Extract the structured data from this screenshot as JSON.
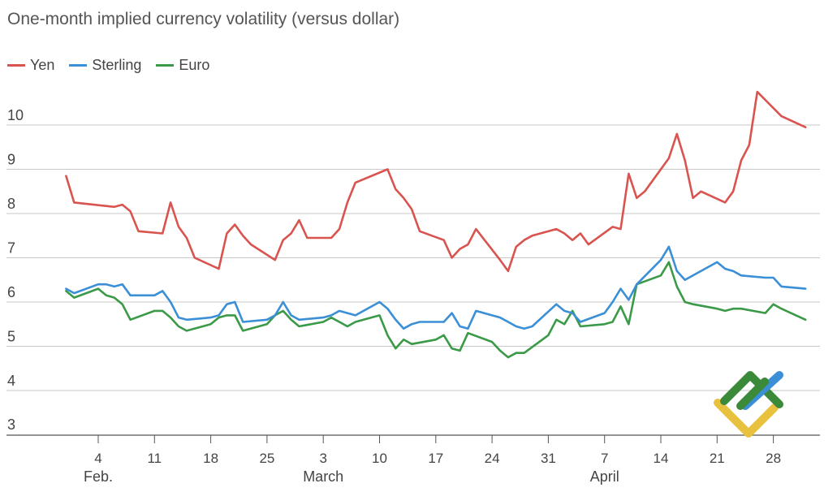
{
  "chart_data": {
    "type": "line",
    "title": "One-month implied currency volatility (versus dollar)",
    "ylim": [
      3,
      11
    ],
    "yticks": [
      3,
      4,
      5,
      6,
      7,
      8,
      9,
      10
    ],
    "grid": "horizontal",
    "legend_placement": "top-left",
    "x_ticks": [
      "4",
      "11",
      "18",
      "25",
      "3",
      "10",
      "17",
      "24",
      "31",
      "7",
      "14",
      "21",
      "28"
    ],
    "x_tick_dates": [
      "2020-02-04",
      "2020-02-11",
      "2020-02-18",
      "2020-02-25",
      "2020-03-03",
      "2020-03-10",
      "2020-03-17",
      "2020-03-24",
      "2020-03-31",
      "2020-04-07",
      "2020-04-14",
      "2020-04-21",
      "2020-04-28"
    ],
    "months": [
      {
        "label": "Feb.",
        "date": "2020-02-04"
      },
      {
        "label": "March",
        "date": "2020-03-03"
      },
      {
        "label": "April",
        "date": "2020-04-07"
      }
    ],
    "series": [
      {
        "name": "Yen",
        "color": "#d9534f",
        "points": [
          [
            "2020-01-31",
            8.85
          ],
          [
            "2020-02-01",
            8.25
          ],
          [
            "2020-02-06",
            8.15
          ],
          [
            "2020-02-07",
            8.2
          ],
          [
            "2020-02-08",
            8.05
          ],
          [
            "2020-02-09",
            7.6
          ],
          [
            "2020-02-12",
            7.55
          ],
          [
            "2020-02-13",
            8.25
          ],
          [
            "2020-02-14",
            7.7
          ],
          [
            "2020-02-15",
            7.45
          ],
          [
            "2020-02-16",
            7.0
          ],
          [
            "2020-02-19",
            6.75
          ],
          [
            "2020-02-20",
            7.55
          ],
          [
            "2020-02-21",
            7.75
          ],
          [
            "2020-02-22",
            7.5
          ],
          [
            "2020-02-23",
            7.3
          ],
          [
            "2020-02-26",
            6.95
          ],
          [
            "2020-02-27",
            7.4
          ],
          [
            "2020-02-28",
            7.55
          ],
          [
            "2020-02-29",
            7.85
          ],
          [
            "2020-03-01",
            7.45
          ],
          [
            "2020-03-04",
            7.45
          ],
          [
            "2020-03-05",
            7.65
          ],
          [
            "2020-03-06",
            8.25
          ],
          [
            "2020-03-07",
            8.7
          ],
          [
            "2020-03-11",
            9.0
          ],
          [
            "2020-03-12",
            8.55
          ],
          [
            "2020-03-13",
            8.35
          ],
          [
            "2020-03-14",
            8.1
          ],
          [
            "2020-03-15",
            7.6
          ],
          [
            "2020-03-18",
            7.4
          ],
          [
            "2020-03-19",
            7.0
          ],
          [
            "2020-03-20",
            7.2
          ],
          [
            "2020-03-21",
            7.3
          ],
          [
            "2020-03-22",
            7.65
          ],
          [
            "2020-03-25",
            6.95
          ],
          [
            "2020-03-26",
            6.7
          ],
          [
            "2020-03-27",
            7.25
          ],
          [
            "2020-03-28",
            7.4
          ],
          [
            "2020-03-29",
            7.5
          ],
          [
            "2020-04-01",
            7.65
          ],
          [
            "2020-04-02",
            7.55
          ],
          [
            "2020-04-03",
            7.4
          ],
          [
            "2020-04-04",
            7.55
          ],
          [
            "2020-04-05",
            7.3
          ],
          [
            "2020-04-08",
            7.7
          ],
          [
            "2020-04-09",
            7.65
          ],
          [
            "2020-04-10",
            8.9
          ],
          [
            "2020-04-11",
            8.35
          ],
          [
            "2020-04-12",
            8.5
          ],
          [
            "2020-04-15",
            9.25
          ],
          [
            "2020-04-16",
            9.8
          ],
          [
            "2020-04-17",
            9.2
          ],
          [
            "2020-04-18",
            8.35
          ],
          [
            "2020-04-19",
            8.5
          ],
          [
            "2020-04-22",
            8.25
          ],
          [
            "2020-04-23",
            8.5
          ],
          [
            "2020-04-24",
            9.2
          ],
          [
            "2020-04-25",
            9.55
          ],
          [
            "2020-04-26",
            10.75
          ],
          [
            "2020-04-29",
            10.2
          ],
          [
            "2020-05-02",
            9.95
          ]
        ]
      },
      {
        "name": "Sterling",
        "color": "#3a8fd6",
        "points": [
          [
            "2020-01-31",
            6.3
          ],
          [
            "2020-02-01",
            6.2
          ],
          [
            "2020-02-04",
            6.4
          ],
          [
            "2020-02-05",
            6.4
          ],
          [
            "2020-02-06",
            6.35
          ],
          [
            "2020-02-07",
            6.4
          ],
          [
            "2020-02-08",
            6.15
          ],
          [
            "2020-02-11",
            6.15
          ],
          [
            "2020-02-12",
            6.25
          ],
          [
            "2020-02-13",
            6.0
          ],
          [
            "2020-02-14",
            5.65
          ],
          [
            "2020-02-15",
            5.6
          ],
          [
            "2020-02-18",
            5.65
          ],
          [
            "2020-02-19",
            5.7
          ],
          [
            "2020-02-20",
            5.95
          ],
          [
            "2020-02-21",
            6.0
          ],
          [
            "2020-02-22",
            5.55
          ],
          [
            "2020-02-25",
            5.6
          ],
          [
            "2020-02-26",
            5.7
          ],
          [
            "2020-02-27",
            6.0
          ],
          [
            "2020-02-28",
            5.7
          ],
          [
            "2020-02-29",
            5.6
          ],
          [
            "2020-03-03",
            5.65
          ],
          [
            "2020-03-04",
            5.7
          ],
          [
            "2020-03-05",
            5.8
          ],
          [
            "2020-03-06",
            5.75
          ],
          [
            "2020-03-07",
            5.7
          ],
          [
            "2020-03-10",
            6.0
          ],
          [
            "2020-03-11",
            5.85
          ],
          [
            "2020-03-12",
            5.6
          ],
          [
            "2020-03-13",
            5.4
          ],
          [
            "2020-03-14",
            5.5
          ],
          [
            "2020-03-15",
            5.55
          ],
          [
            "2020-03-18",
            5.55
          ],
          [
            "2020-03-19",
            5.75
          ],
          [
            "2020-03-20",
            5.45
          ],
          [
            "2020-03-21",
            5.4
          ],
          [
            "2020-03-22",
            5.8
          ],
          [
            "2020-03-25",
            5.65
          ],
          [
            "2020-03-26",
            5.55
          ],
          [
            "2020-03-27",
            5.45
          ],
          [
            "2020-03-28",
            5.4
          ],
          [
            "2020-03-29",
            5.45
          ],
          [
            "2020-04-01",
            5.95
          ],
          [
            "2020-04-02",
            5.8
          ],
          [
            "2020-04-03",
            5.75
          ],
          [
            "2020-04-04",
            5.55
          ],
          [
            "2020-04-07",
            5.75
          ],
          [
            "2020-04-08",
            6.0
          ],
          [
            "2020-04-09",
            6.3
          ],
          [
            "2020-04-10",
            6.05
          ],
          [
            "2020-04-11",
            6.4
          ],
          [
            "2020-04-14",
            6.95
          ],
          [
            "2020-04-15",
            7.25
          ],
          [
            "2020-04-16",
            6.7
          ],
          [
            "2020-04-17",
            6.5
          ],
          [
            "2020-04-18",
            6.6
          ],
          [
            "2020-04-21",
            6.9
          ],
          [
            "2020-04-22",
            6.75
          ],
          [
            "2020-04-23",
            6.7
          ],
          [
            "2020-04-24",
            6.6
          ],
          [
            "2020-04-27",
            6.55
          ],
          [
            "2020-04-28",
            6.55
          ],
          [
            "2020-04-29",
            6.35
          ],
          [
            "2020-05-02",
            6.3
          ]
        ]
      },
      {
        "name": "Euro",
        "color": "#3a9a47",
        "points": [
          [
            "2020-01-31",
            6.25
          ],
          [
            "2020-02-01",
            6.1
          ],
          [
            "2020-02-04",
            6.3
          ],
          [
            "2020-02-05",
            6.15
          ],
          [
            "2020-02-06",
            6.1
          ],
          [
            "2020-02-07",
            5.95
          ],
          [
            "2020-02-08",
            5.6
          ],
          [
            "2020-02-11",
            5.8
          ],
          [
            "2020-02-12",
            5.8
          ],
          [
            "2020-02-13",
            5.65
          ],
          [
            "2020-02-14",
            5.45
          ],
          [
            "2020-02-15",
            5.35
          ],
          [
            "2020-02-18",
            5.5
          ],
          [
            "2020-02-19",
            5.65
          ],
          [
            "2020-02-20",
            5.7
          ],
          [
            "2020-02-21",
            5.7
          ],
          [
            "2020-02-22",
            5.35
          ],
          [
            "2020-02-25",
            5.5
          ],
          [
            "2020-02-26",
            5.7
          ],
          [
            "2020-02-27",
            5.8
          ],
          [
            "2020-02-28",
            5.6
          ],
          [
            "2020-02-29",
            5.45
          ],
          [
            "2020-03-03",
            5.55
          ],
          [
            "2020-03-04",
            5.65
          ],
          [
            "2020-03-05",
            5.55
          ],
          [
            "2020-03-06",
            5.45
          ],
          [
            "2020-03-07",
            5.55
          ],
          [
            "2020-03-10",
            5.7
          ],
          [
            "2020-03-11",
            5.25
          ],
          [
            "2020-03-12",
            4.95
          ],
          [
            "2020-03-13",
            5.15
          ],
          [
            "2020-03-14",
            5.05
          ],
          [
            "2020-03-17",
            5.15
          ],
          [
            "2020-03-18",
            5.25
          ],
          [
            "2020-03-19",
            4.95
          ],
          [
            "2020-03-20",
            4.9
          ],
          [
            "2020-03-21",
            5.3
          ],
          [
            "2020-03-24",
            5.1
          ],
          [
            "2020-03-25",
            4.9
          ],
          [
            "2020-03-26",
            4.75
          ],
          [
            "2020-03-27",
            4.85
          ],
          [
            "2020-03-28",
            4.85
          ],
          [
            "2020-03-31",
            5.25
          ],
          [
            "2020-04-01",
            5.6
          ],
          [
            "2020-04-02",
            5.5
          ],
          [
            "2020-04-03",
            5.8
          ],
          [
            "2020-04-04",
            5.45
          ],
          [
            "2020-04-07",
            5.5
          ],
          [
            "2020-04-08",
            5.55
          ],
          [
            "2020-04-09",
            5.9
          ],
          [
            "2020-04-10",
            5.5
          ],
          [
            "2020-04-11",
            6.4
          ],
          [
            "2020-04-14",
            6.6
          ],
          [
            "2020-04-15",
            6.9
          ],
          [
            "2020-04-16",
            6.35
          ],
          [
            "2020-04-17",
            6.0
          ],
          [
            "2020-04-18",
            5.95
          ],
          [
            "2020-04-21",
            5.85
          ],
          [
            "2020-04-22",
            5.8
          ],
          [
            "2020-04-23",
            5.85
          ],
          [
            "2020-04-24",
            5.85
          ],
          [
            "2020-04-27",
            5.75
          ],
          [
            "2020-04-28",
            5.95
          ],
          [
            "2020-04-29",
            5.85
          ],
          [
            "2020-05-02",
            5.6
          ]
        ]
      }
    ]
  },
  "logo": {
    "name": "litefinance-logo",
    "colors": [
      "#3a8a3a",
      "#e8c13e",
      "#3a8fd6"
    ]
  }
}
